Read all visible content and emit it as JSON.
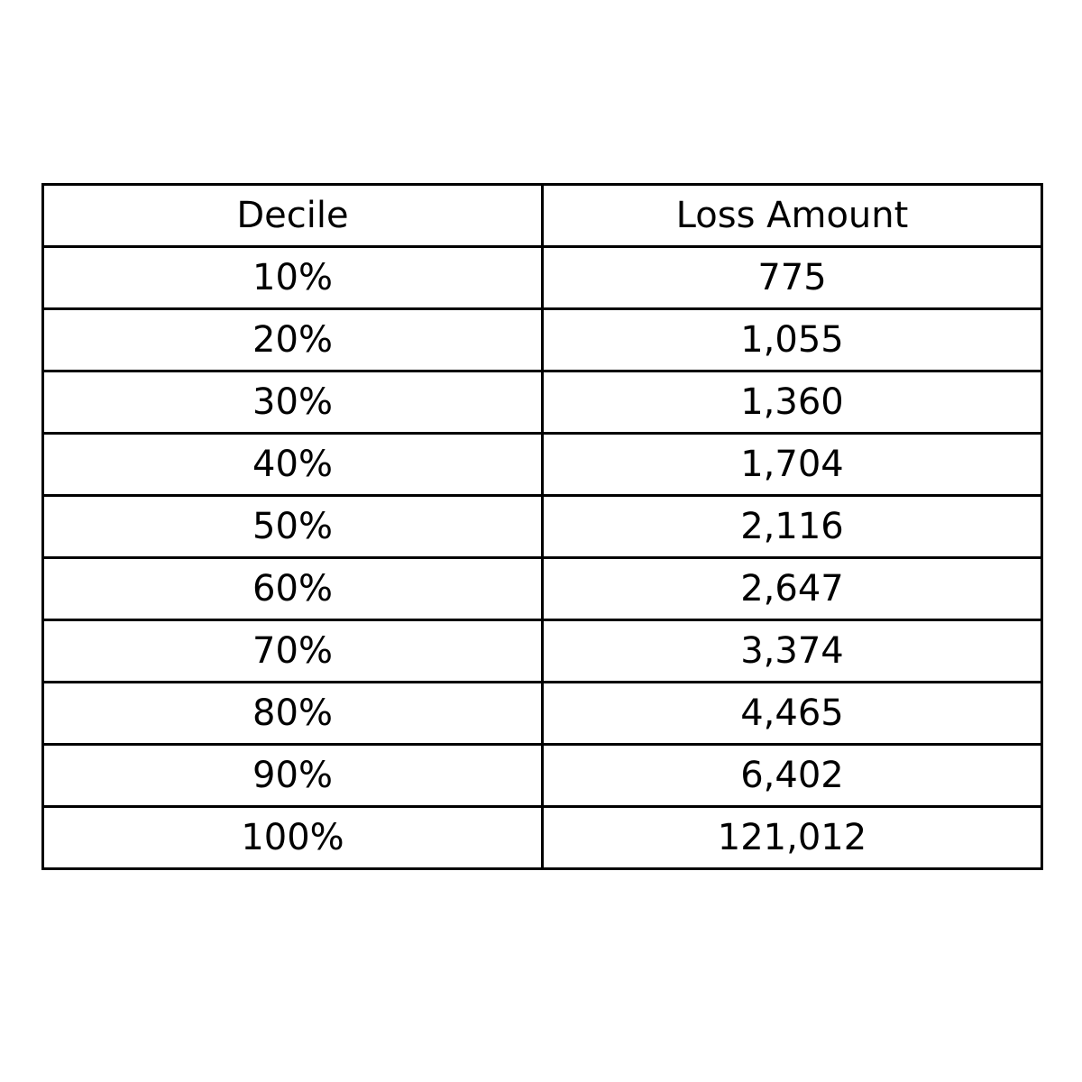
{
  "chart_data": {
    "type": "table",
    "columns": [
      "Decile",
      "Loss Amount"
    ],
    "rows": [
      [
        "10%",
        "775"
      ],
      [
        "20%",
        "1,055"
      ],
      [
        "30%",
        "1,360"
      ],
      [
        "40%",
        "1,704"
      ],
      [
        "50%",
        "2,116"
      ],
      [
        "60%",
        "2,647"
      ],
      [
        "70%",
        "3,374"
      ],
      [
        "80%",
        "4,465"
      ],
      [
        "90%",
        "6,402"
      ],
      [
        "100%",
        "121,012"
      ]
    ]
  }
}
